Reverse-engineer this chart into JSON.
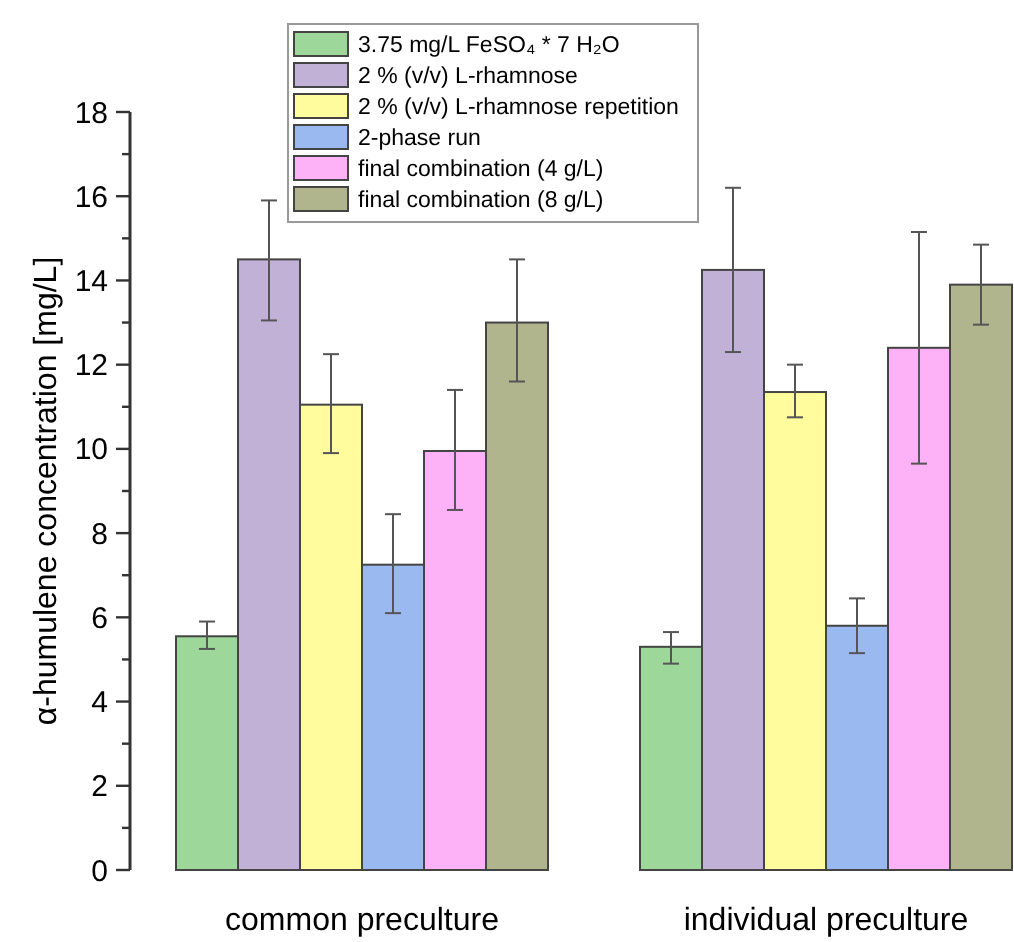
{
  "chart_data": {
    "type": "bar",
    "ylabel": "α-humulene concentration [mg/L]",
    "categories": [
      "common preculture",
      "individual preculture"
    ],
    "series": [
      {
        "name": "3.75 mg/L FeSO₄ * 7 H₂O",
        "color": "#9dd89a",
        "values": [
          5.55,
          5.3
        ],
        "errors": [
          [
            5.25,
            5.9
          ],
          [
            4.9,
            5.65
          ]
        ]
      },
      {
        "name": "2 % (v/v) L-rhamnose",
        "color": "#c2b1d7",
        "values": [
          14.5,
          14.25
        ],
        "errors": [
          [
            13.05,
            15.9
          ],
          [
            12.3,
            16.2
          ]
        ]
      },
      {
        "name": "2 % (v/v) L-rhamnose repetition",
        "color": "#fefc9c",
        "values": [
          11.05,
          11.35
        ],
        "errors": [
          [
            9.9,
            12.25
          ],
          [
            10.75,
            12.0
          ]
        ]
      },
      {
        "name": "2-phase run",
        "color": "#9ab9f0",
        "values": [
          7.25,
          5.8
        ],
        "errors": [
          [
            6.1,
            8.45
          ],
          [
            5.15,
            6.45
          ]
        ]
      },
      {
        "name": "final combination (4 g/L)",
        "color": "#fdb1f6",
        "values": [
          9.95,
          12.4
        ],
        "errors": [
          [
            8.55,
            11.4
          ],
          [
            9.65,
            15.15
          ]
        ]
      },
      {
        "name": "final combination (8 g/L)",
        "color": "#b0b58e",
        "values": [
          13.0,
          13.9
        ],
        "errors": [
          [
            11.6,
            14.5
          ],
          [
            12.95,
            14.85
          ]
        ]
      }
    ],
    "ylim": [
      0,
      18
    ],
    "yticks": [
      0,
      {
        "value": 1,
        "label": null
      },
      2,
      {
        "value": 3,
        "label": null
      },
      4,
      {
        "value": 5,
        "label": null
      },
      6,
      {
        "value": 7,
        "label": null
      },
      8,
      {
        "value": 9,
        "label": null
      },
      10,
      {
        "value": 11,
        "label": null
      },
      12,
      {
        "value": 13,
        "label": null
      },
      14,
      {
        "value": 15,
        "label": null
      },
      16,
      {
        "value": 17,
        "label": null
      },
      18
    ],
    "grid": false,
    "legend": "top"
  }
}
